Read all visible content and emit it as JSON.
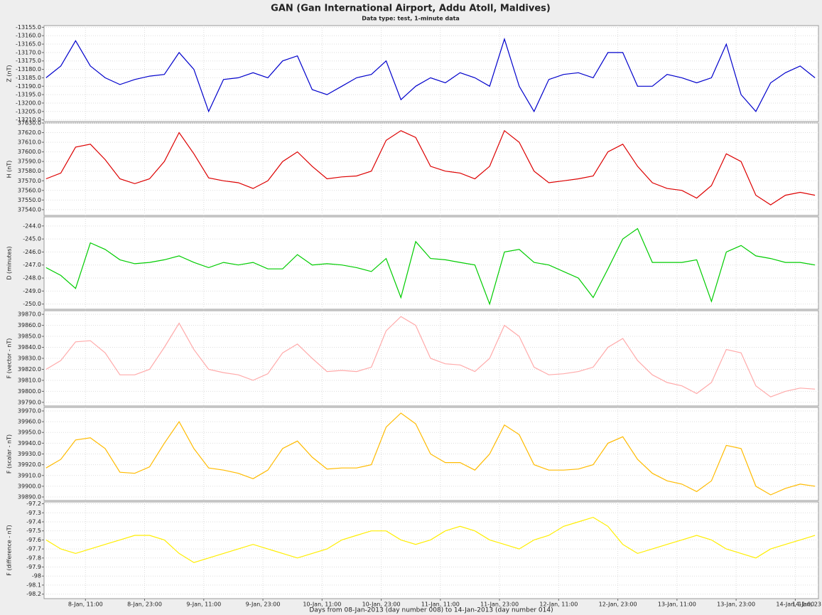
{
  "chart_data": {
    "type": "line",
    "title": "GAN (Gan International Airport, Addu Atoll, Maldives)",
    "subtitle": "Data type: test, 1-minute data",
    "xlabel": "Days from 08-Jan-2013 (day number 008) to 14-Jan-2013 (day number 014)",
    "grid": true,
    "xlim": [
      2.6,
      159.7
    ],
    "xticks": [
      {
        "value": 11,
        "label": "8-Jan, 11:00"
      },
      {
        "value": 23,
        "label": "8-Jan, 23:00"
      },
      {
        "value": 35,
        "label": "9-Jan, 11:00"
      },
      {
        "value": 47,
        "label": "9-Jan, 23:00"
      },
      {
        "value": 59,
        "label": "10-Jan, 11:00"
      },
      {
        "value": 71,
        "label": "10-Jan, 23:00"
      },
      {
        "value": 83,
        "label": "11-Jan, 11:00"
      },
      {
        "value": 95,
        "label": "11-Jan, 23:00"
      },
      {
        "value": 107,
        "label": "12-Jan, 11:00"
      },
      {
        "value": 119,
        "label": "12-Jan, 23:00"
      },
      {
        "value": 131,
        "label": "13-Jan, 11:00"
      },
      {
        "value": 143,
        "label": "13-Jan, 23:00"
      },
      {
        "value": 155,
        "label": "14-Jan, 11:00"
      },
      {
        "value": 167,
        "label": "14-Jan, 23"
      }
    ],
    "x": [
      3,
      6,
      9,
      12,
      15,
      18,
      21,
      24,
      27,
      30,
      33,
      36,
      39,
      42,
      45,
      48,
      51,
      54,
      57,
      60,
      63,
      66,
      69,
      72,
      75,
      78,
      81,
      84,
      87,
      90,
      93,
      96,
      99,
      102,
      105,
      108,
      111,
      114,
      117,
      120,
      123,
      126,
      129,
      132,
      135,
      138,
      141,
      144,
      147,
      150,
      153,
      156,
      159
    ],
    "panels": [
      {
        "ylabel": "Z (nT)",
        "color": "#0000cc",
        "ylim": [
          -13211,
          -13154
        ],
        "yticks": [
          {
            "value": -13155,
            "label": "-13155.0"
          },
          {
            "value": -13160,
            "label": "-13160.0"
          },
          {
            "value": -13165,
            "label": "-13165.0"
          },
          {
            "value": -13170,
            "label": "-13170.0"
          },
          {
            "value": -13175,
            "label": "-13175.0"
          },
          {
            "value": -13180,
            "label": "-13180.0"
          },
          {
            "value": -13185,
            "label": "-13185.0"
          },
          {
            "value": -13190,
            "label": "-13190.0"
          },
          {
            "value": -13195,
            "label": "-13195.0"
          },
          {
            "value": -13200,
            "label": "-13200.0"
          },
          {
            "value": -13205,
            "label": "-13205.0"
          },
          {
            "value": -13210,
            "label": "-13210.0"
          }
        ],
        "values": [
          -13185,
          -13178,
          -13163,
          -13178,
          -13185,
          -13189,
          -13186,
          -13184,
          -13183,
          -13170,
          -13180,
          -13205,
          -13186,
          -13185,
          -13182,
          -13185,
          -13175,
          -13172,
          -13192,
          -13195,
          -13190,
          -13185,
          -13183,
          -13175,
          -13198,
          -13190,
          -13185,
          -13188,
          -13182,
          -13185,
          -13190,
          -13162,
          -13190,
          -13205,
          -13186,
          -13183,
          -13182,
          -13185,
          -13170,
          -13170,
          -13190,
          -13190,
          -13183,
          -13185,
          -13188,
          -13185,
          -13165,
          -13195,
          -13205,
          -13188,
          -13182,
          -13178,
          -13185
        ]
      },
      {
        "ylabel": "H (nT)",
        "color": "#dd0000",
        "ylim": [
          37534,
          37630
        ],
        "yticks": [
          {
            "value": 37540,
            "label": "37540.0"
          },
          {
            "value": 37550,
            "label": "37550.0"
          },
          {
            "value": 37560,
            "label": "37560.0"
          },
          {
            "value": 37570,
            "label": "37570.0"
          },
          {
            "value": 37580,
            "label": "37580.0"
          },
          {
            "value": 37590,
            "label": "37590.0"
          },
          {
            "value": 37600,
            "label": "37600.0"
          },
          {
            "value": 37610,
            "label": "37610.0"
          },
          {
            "value": 37620,
            "label": "37620.0"
          },
          {
            "value": 37630,
            "label": "37630.0"
          }
        ],
        "values": [
          37572,
          37578,
          37605,
          37608,
          37592,
          37572,
          37567,
          37572,
          37590,
          37620,
          37598,
          37573,
          37570,
          37568,
          37562,
          37570,
          37590,
          37600,
          37585,
          37572,
          37574,
          37575,
          37580,
          37612,
          37622,
          37615,
          37585,
          37580,
          37578,
          37572,
          37585,
          37622,
          37610,
          37580,
          37568,
          37570,
          37572,
          37575,
          37600,
          37608,
          37585,
          37568,
          37562,
          37560,
          37552,
          37565,
          37598,
          37590,
          37555,
          37545,
          37555,
          37558,
          37555
        ]
      },
      {
        "ylabel": "D (minutes)",
        "color": "#00cc00",
        "ylim": [
          -250.4,
          -243.3
        ],
        "yticks": [
          {
            "value": -244,
            "label": "-244.0"
          },
          {
            "value": -245,
            "label": "-245.0"
          },
          {
            "value": -246,
            "label": "-246.0"
          },
          {
            "value": -247,
            "label": "-247.0"
          },
          {
            "value": -248,
            "label": "-248.0"
          },
          {
            "value": -249,
            "label": "-249.0"
          },
          {
            "value": -250,
            "label": "-250.0"
          }
        ],
        "values": [
          -247.2,
          -247.8,
          -248.8,
          -245.3,
          -245.8,
          -246.6,
          -246.9,
          -246.8,
          -246.6,
          -246.3,
          -246.8,
          -247.2,
          -246.8,
          -247.0,
          -246.8,
          -247.3,
          -247.3,
          -246.2,
          -247.0,
          -246.9,
          -247.0,
          -247.2,
          -247.5,
          -246.5,
          -249.5,
          -245.2,
          -246.5,
          -246.6,
          -246.8,
          -247.0,
          -250.0,
          -246.0,
          -245.8,
          -246.8,
          -247.0,
          -247.5,
          -248.0,
          -249.5,
          -247.3,
          -245.0,
          -244.2,
          -246.8,
          -246.8,
          -246.8,
          -246.6,
          -249.8,
          -246.0,
          -245.5,
          -246.3,
          -246.5,
          -246.8,
          -246.8,
          -247.0
        ]
      },
      {
        "ylabel": "F (vector - nT)",
        "color": "#ffaaaa",
        "ylim": [
          39786.7,
          39873.3
        ],
        "yticks": [
          {
            "value": 39790,
            "label": "39790.0"
          },
          {
            "value": 39800,
            "label": "39800.0"
          },
          {
            "value": 39810,
            "label": "39810.0"
          },
          {
            "value": 39820,
            "label": "39820.0"
          },
          {
            "value": 39830,
            "label": "39830.0"
          },
          {
            "value": 39840,
            "label": "39840.0"
          },
          {
            "value": 39850,
            "label": "39850.0"
          },
          {
            "value": 39860,
            "label": "39860.0"
          },
          {
            "value": 39870,
            "label": "39870.0"
          }
        ],
        "values": [
          39820,
          39828,
          39845,
          39846,
          39835,
          39815,
          39815,
          39820,
          39840,
          39862,
          39838,
          39820,
          39817,
          39815,
          39810,
          39816,
          39835,
          39843,
          39830,
          39818,
          39819,
          39818,
          39822,
          39855,
          39868,
          39860,
          39830,
          39825,
          39824,
          39818,
          39830,
          39860,
          39850,
          39822,
          39815,
          39816,
          39818,
          39822,
          39840,
          39848,
          39828,
          39815,
          39808,
          39805,
          39798,
          39808,
          39838,
          39835,
          39805,
          39795,
          39800,
          39803,
          39802
        ]
      },
      {
        "ylabel": "F (scalar - nT)",
        "color": "#ffbb00",
        "ylim": [
          39886.7,
          39973.3
        ],
        "yticks": [
          {
            "value": 39890,
            "label": "39890.0"
          },
          {
            "value": 39900,
            "label": "39900.0"
          },
          {
            "value": 39910,
            "label": "39910.0"
          },
          {
            "value": 39920,
            "label": "39920.0"
          },
          {
            "value": 39930,
            "label": "39930.0"
          },
          {
            "value": 39940,
            "label": "39940.0"
          },
          {
            "value": 39950,
            "label": "39950.0"
          },
          {
            "value": 39960,
            "label": "39960.0"
          },
          {
            "value": 39970,
            "label": "39970.0"
          }
        ],
        "values": [
          39917,
          39925,
          39943,
          39945,
          39935,
          39913,
          39912,
          39918,
          39940,
          39960,
          39935,
          39917,
          39915,
          39912,
          39907,
          39915,
          39935,
          39942,
          39927,
          39916,
          39917,
          39917,
          39920,
          39955,
          39968,
          39958,
          39930,
          39922,
          39922,
          39915,
          39930,
          39957,
          39948,
          39920,
          39915,
          39915,
          39916,
          39920,
          39940,
          39946,
          39925,
          39912,
          39905,
          39902,
          39895,
          39905,
          39938,
          39935,
          39900,
          39892,
          39898,
          39902,
          39900
        ]
      },
      {
        "ylabel": "F (difference - nT)",
        "color": "#ffee00",
        "ylim": [
          -98.25,
          -97.18
        ],
        "yticks": [
          -97.2,
          -97.3,
          -97.4,
          -97.5,
          -97.6,
          -97.7,
          -97.8,
          -97.9,
          -98.0,
          -98.1,
          -98.2
        ],
        "values": [
          -97.6,
          -97.7,
          -97.75,
          -97.7,
          -97.65,
          -97.6,
          -97.55,
          -97.55,
          -97.6,
          -97.75,
          -97.85,
          -97.8,
          -97.75,
          -97.7,
          -97.65,
          -97.7,
          -97.75,
          -97.8,
          -97.75,
          -97.7,
          -97.6,
          -97.55,
          -97.5,
          -97.5,
          -97.6,
          -97.65,
          -97.6,
          -97.5,
          -97.45,
          -97.5,
          -97.6,
          -97.65,
          -97.7,
          -97.6,
          -97.55,
          -97.45,
          -97.4,
          -97.35,
          -97.45,
          -97.65,
          -97.75,
          -97.7,
          -97.65,
          -97.6,
          -97.55,
          -97.6,
          -97.7,
          -97.75,
          -97.8,
          -97.7,
          -97.65,
          -97.6,
          -97.55
        ]
      }
    ]
  }
}
